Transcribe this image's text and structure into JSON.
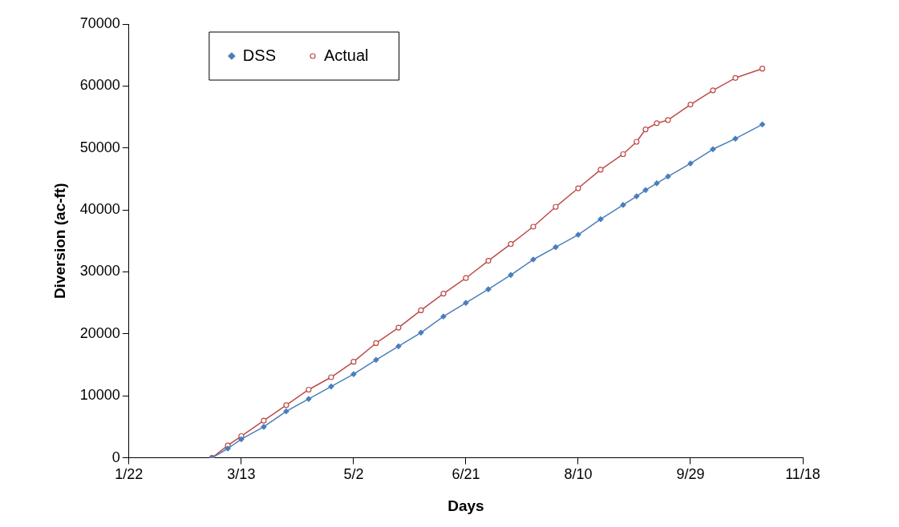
{
  "chart_data": {
    "type": "line",
    "xlabel": "Days",
    "ylabel": "Diversion (ac-ft)",
    "x": [
      "--02-28",
      "--03-07",
      "--03-13",
      "--03-23",
      "--04-02",
      "--04-12",
      "--04-22",
      "--05-02",
      "--05-12",
      "--05-22",
      "--06-01",
      "--06-11",
      "--06-21",
      "--07-01",
      "--07-11",
      "--07-21",
      "--07-31",
      "--08-10",
      "--08-20",
      "--08-30",
      "--09-05",
      "--09-09",
      "--09-14",
      "--09-19",
      "--09-29",
      "--10-09",
      "--10-19",
      "--10-31"
    ],
    "series": [
      {
        "name": "DSS",
        "color": "#4a7ebb",
        "marker": "diamond",
        "values": [
          0,
          1500,
          3000,
          5000,
          7500,
          9500,
          11500,
          13500,
          15800,
          18000,
          20200,
          22800,
          25000,
          27200,
          29500,
          32000,
          34000,
          36000,
          38500,
          40800,
          42200,
          43200,
          44300,
          45400,
          47500,
          49800,
          51500,
          53800
        ]
      },
      {
        "name": "Actual",
        "color": "#be4b48",
        "marker": "circle",
        "values": [
          0,
          2000,
          3500,
          6000,
          8500,
          11000,
          13000,
          15500,
          18500,
          21000,
          23800,
          26500,
          29000,
          31800,
          34500,
          37300,
          40500,
          43500,
          46500,
          49000,
          51000,
          53000,
          54000,
          54500,
          57000,
          59300,
          61300,
          62800
        ]
      }
    ],
    "xlim": [
      "--01-22",
      "--11-18"
    ],
    "xticks": [
      {
        "value": "--01-22",
        "label": "1/22"
      },
      {
        "value": "--03-13",
        "label": "3/13"
      },
      {
        "value": "--05-02",
        "label": "5/2"
      },
      {
        "value": "--06-21",
        "label": "6/21"
      },
      {
        "value": "--08-10",
        "label": "8/10"
      },
      {
        "value": "--09-29",
        "label": "9/29"
      },
      {
        "value": "--11-18",
        "label": "11/18"
      }
    ],
    "ylim": [
      0,
      70000
    ],
    "yticks": [
      0,
      10000,
      20000,
      30000,
      40000,
      50000,
      60000,
      70000
    ],
    "grid": false,
    "legend": "top left",
    "line_style": "solid"
  }
}
